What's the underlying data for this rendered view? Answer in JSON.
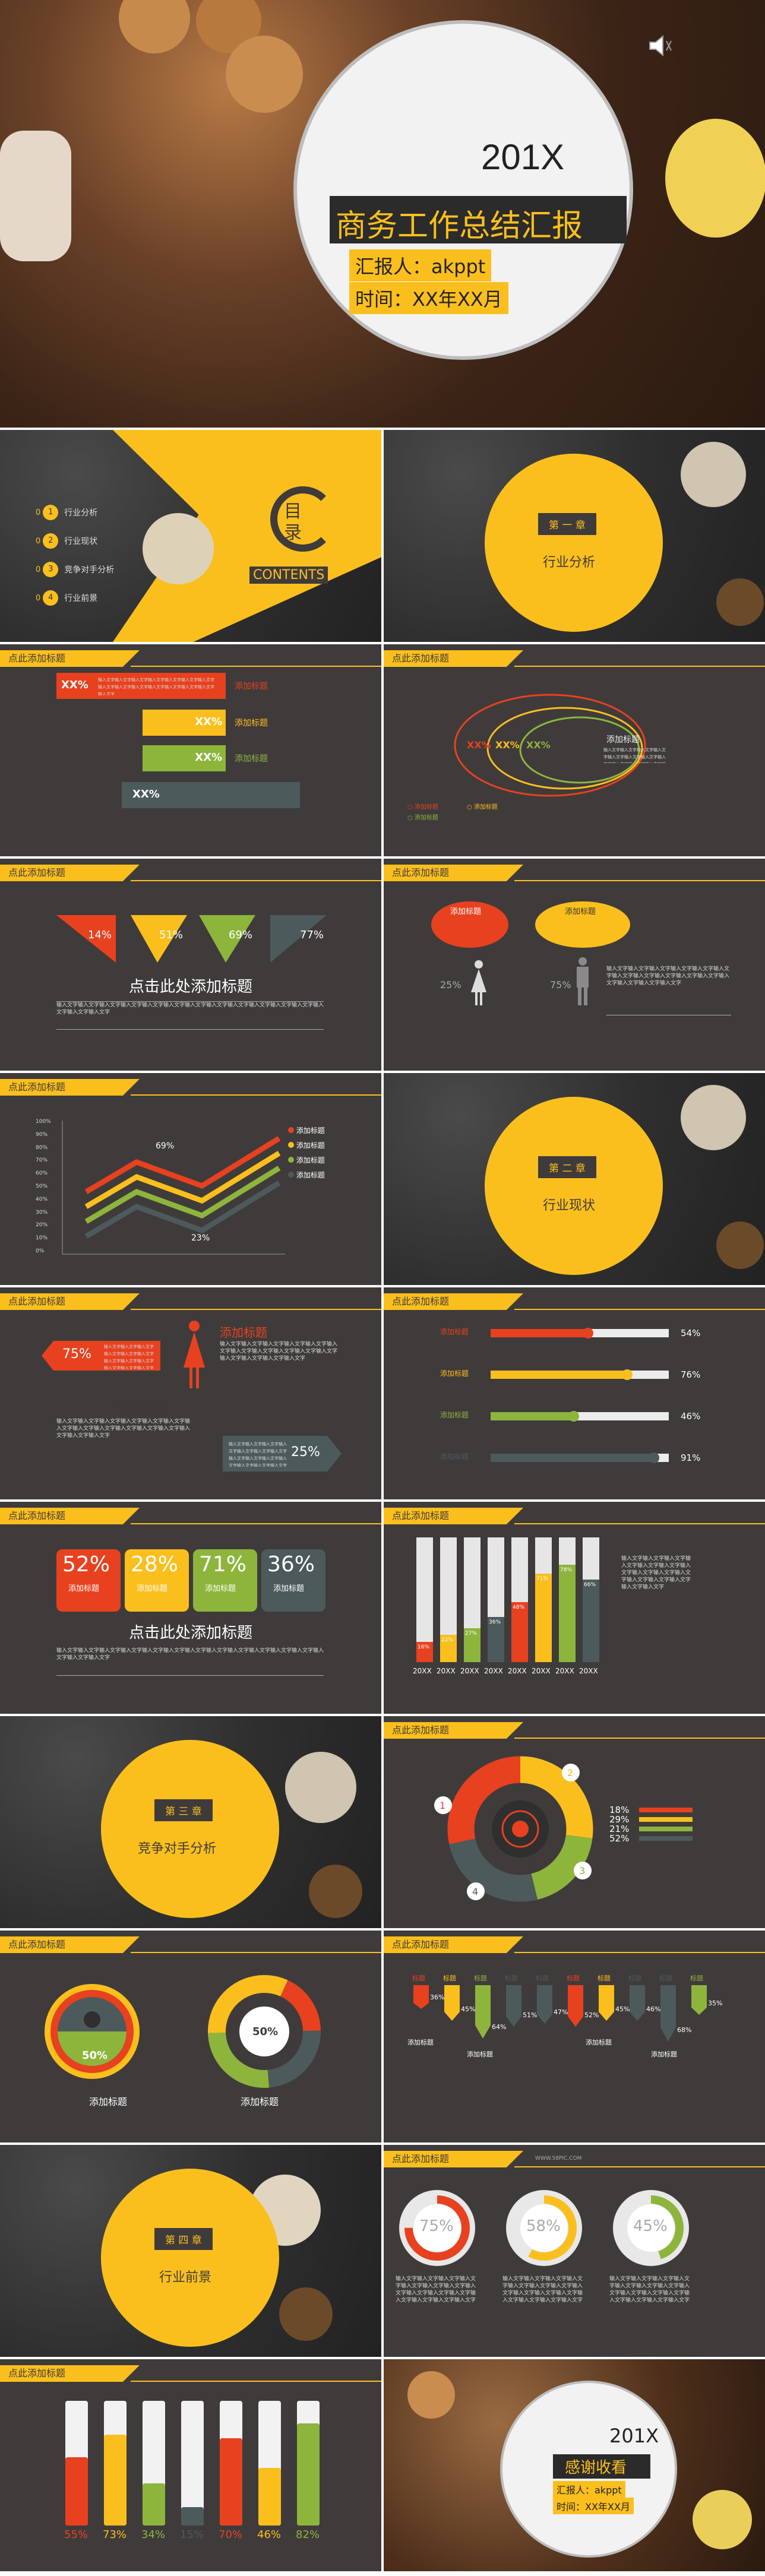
{
  "cover": {
    "year": "201X",
    "title": "商务工作总结汇报",
    "reporter": "汇报人：akppt",
    "time": "时间：XX年XX月",
    "speaker_icon": "speaker-icon"
  },
  "contents": {
    "big": "目",
    "big2": "录",
    "word": "CONTENTS",
    "items": [
      {
        "n": "01",
        "t": "行业分析"
      },
      {
        "n": "02",
        "t": "行业现状"
      },
      {
        "n": "03",
        "t": "竞争对手分析"
      },
      {
        "n": "04",
        "t": "行业前景"
      }
    ]
  },
  "common": {
    "tag": "点此添加标题",
    "add_title": "添加标题",
    "click_title": "点击此处添加标题",
    "body": "输入文字输入文字输入文字输入文字输入文字输入文字输入文字输入文字输入文字输入文字输入文字输入文字输入文字输入文字输入文字"
  },
  "chapters": [
    {
      "label": "第 一 章",
      "name": "行业分析"
    },
    {
      "label": "第 二 章",
      "name": "行业现状"
    },
    {
      "label": "第 三 章",
      "name": "竞争对手分析"
    },
    {
      "label": "第 四 章",
      "name": "行业前景"
    }
  ],
  "slide_bars": {
    "items": [
      {
        "v": "XX%",
        "color": "#e8411f"
      },
      {
        "v": "XX%",
        "color": "#fbbf1d"
      },
      {
        "v": "XX%",
        "color": "#8db53c"
      },
      {
        "v": "XX%",
        "color": "#4d5a5b"
      }
    ]
  },
  "slide_ellipse": {
    "labels": [
      "XX%",
      "XX%",
      "XX%"
    ],
    "legend": [
      "添加标题",
      "添加标题",
      "添加标题"
    ]
  },
  "slide_flags": {
    "values": [
      "14%",
      "51%",
      "69%",
      "77%"
    ]
  },
  "slide_bubbles": {
    "left": "添加标题",
    "right": "添加标题",
    "p1": "25%",
    "p2": "75%"
  },
  "chart_data": {
    "type": "line",
    "yticks": [
      "100%",
      "90%",
      "80%",
      "70%",
      "60%",
      "50%",
      "40%",
      "30%",
      "20%",
      "10%",
      "0%"
    ],
    "label_high": "69%",
    "label_low": "23%",
    "series": [
      {
        "name": "添加标题",
        "color": "#e8411f"
      },
      {
        "name": "添加标题",
        "color": "#fbbf1d"
      },
      {
        "name": "添加标题",
        "color": "#8db53c"
      },
      {
        "name": "添加标题",
        "color": "#4d5a5b"
      }
    ]
  },
  "slide_woman": {
    "v1": "75%",
    "v2": "25%"
  },
  "slide_progress": {
    "rows": [
      {
        "label": "添加标题",
        "v": "54%",
        "f": 0.54,
        "color": "#e8411f"
      },
      {
        "label": "添加标题",
        "v": "76%",
        "f": 0.76,
        "color": "#fbbf1d"
      },
      {
        "label": "添加标题",
        "v": "46%",
        "f": 0.46,
        "color": "#8db53c"
      },
      {
        "label": "添加标题",
        "v": "91%",
        "f": 0.91,
        "color": "#4d5a5b"
      }
    ]
  },
  "slide_cards": {
    "values": [
      "52%",
      "28%",
      "71%",
      "36%"
    ]
  },
  "slide_columns": {
    "years": [
      "20XX",
      "20XX",
      "20XX",
      "20XX",
      "20XX",
      "20XX",
      "20XX",
      "20XX"
    ],
    "values": [
      16,
      22,
      27,
      36,
      48,
      71,
      78,
      66
    ],
    "labels": [
      "16%",
      "22%",
      "27%",
      "36%",
      "48%",
      "71%",
      "78%",
      "66%"
    ]
  },
  "slide_target": {
    "nums": [
      "1",
      "2",
      "3",
      "4"
    ],
    "pcts": [
      "18%",
      "29%",
      "21%",
      "52%"
    ]
  },
  "slide_donut": {
    "v": "50%",
    "label1": "添加标题",
    "label2": "添加标题"
  },
  "slide_arrows": {
    "values": [
      "36%",
      "45%",
      "64%",
      "51%",
      "47%",
      "52%",
      "45%",
      "46%",
      "68%",
      "35%"
    ],
    "label": "标题"
  },
  "slide_rings": {
    "values": [
      "75%",
      "58%",
      "45%"
    ],
    "site": "WWW.58PIC.COM"
  },
  "slide_tubes": {
    "values": [
      "55%",
      "73%",
      "34%",
      "15%",
      "70%",
      "46%",
      "82%"
    ]
  },
  "end": {
    "year": "201X",
    "title": "感谢收看",
    "reporter": "汇报人：akppt",
    "time": "时间：XX年XX月"
  }
}
